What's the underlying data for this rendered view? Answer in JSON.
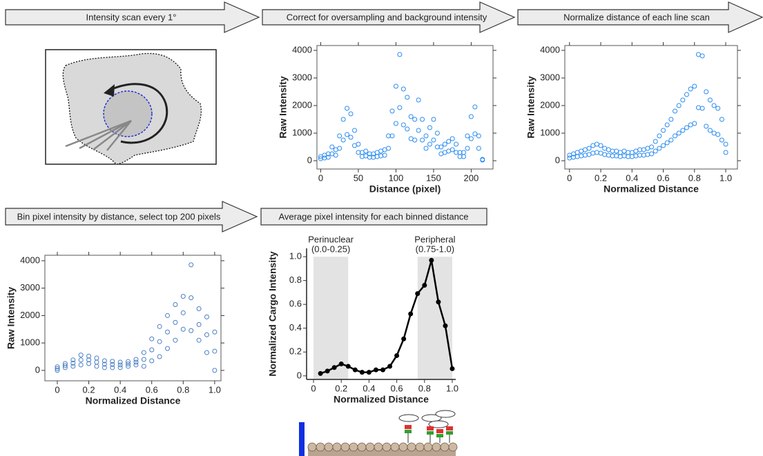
{
  "steps": [
    "Intensity scan every 1°",
    "Correct for oversampling and background intensity",
    "Normalize distance of each line scan",
    "Bin pixel intensity by distance, select top 200 pixels",
    "Average pixel intensity for each binned distance"
  ],
  "chart_data": [
    {
      "type": "scatter",
      "x_label": "Distance (pixel)",
      "y_label": "Raw Intensity",
      "color": "#2b8cf0",
      "frame": true,
      "xlim": [
        -5,
        229
      ],
      "ylim": [
        -300,
        4175
      ],
      "xticks": [
        0,
        50,
        100,
        150,
        200
      ],
      "yticks": [
        0,
        1000,
        2000,
        3000,
        4000
      ],
      "x": [
        0,
        5,
        10,
        15,
        20,
        25,
        30,
        35,
        40,
        45,
        50,
        55,
        60,
        65,
        70,
        75,
        80,
        85,
        90,
        95,
        100,
        105,
        110,
        115,
        120,
        125,
        130,
        135,
        140,
        145,
        150,
        155,
        160,
        165,
        170,
        175,
        180,
        185,
        190,
        195,
        200,
        205,
        210,
        215,
        0,
        5,
        10,
        15,
        20,
        25,
        30,
        35,
        40,
        45,
        50,
        55,
        60,
        65,
        70,
        75,
        80,
        85,
        90,
        95,
        100,
        105,
        110,
        115,
        120,
        125,
        130,
        135,
        140,
        145,
        150,
        155,
        160,
        165,
        170,
        175,
        180,
        185,
        190,
        195,
        200,
        205,
        210,
        215
      ],
      "y": [
        150,
        200,
        250,
        500,
        400,
        900,
        1500,
        1900,
        1700,
        1100,
        600,
        300,
        350,
        250,
        250,
        300,
        350,
        400,
        900,
        1800,
        2700,
        3850,
        2600,
        2300,
        1600,
        1500,
        2200,
        1500,
        900,
        1200,
        1500,
        1000,
        500,
        600,
        700,
        800,
        600,
        300,
        300,
        900,
        1600,
        1950,
        900,
        50,
        75,
        100,
        125,
        250,
        200,
        450,
        750,
        950,
        850,
        550,
        300,
        150,
        175,
        125,
        125,
        150,
        175,
        200,
        450,
        900,
        1350,
        1925,
        1300,
        1150,
        800,
        750,
        1100,
        750,
        450,
        600,
        750,
        500,
        250,
        300,
        350,
        400,
        300,
        150,
        150,
        450,
        800,
        975,
        450,
        25
      ]
    },
    {
      "type": "scatter",
      "x_label": "Normalized Distance",
      "y_label": "Raw Intensity",
      "color": "#2b8cf0",
      "frame": true,
      "xlim": [
        -0.03,
        1.075
      ],
      "ylim": [
        -300,
        4175
      ],
      "xticks": [
        0,
        0.2,
        0.4,
        0.6,
        0.8,
        {
          "value": 1,
          "label": "1.0"
        }
      ],
      "yticks": [
        0,
        1000,
        2000,
        3000,
        4000
      ],
      "x": [
        0,
        0.025,
        0.05,
        0.075,
        0.1,
        0.125,
        0.15,
        0.175,
        0.2,
        0.225,
        0.25,
        0.275,
        0.3,
        0.325,
        0.35,
        0.375,
        0.4,
        0.425,
        0.45,
        0.475,
        0.5,
        0.525,
        0.55,
        0.575,
        0.6,
        0.625,
        0.65,
        0.675,
        0.7,
        0.725,
        0.75,
        0.775,
        0.8,
        0.825,
        0.85,
        0.875,
        0.9,
        0.925,
        0.95,
        0.975,
        1,
        0,
        0.025,
        0.05,
        0.075,
        0.1,
        0.125,
        0.15,
        0.175,
        0.2,
        0.225,
        0.25,
        0.275,
        0.3,
        0.325,
        0.35,
        0.375,
        0.4,
        0.425,
        0.45,
        0.475,
        0.5,
        0.525,
        0.55,
        0.575,
        0.6,
        0.625,
        0.65,
        0.675,
        0.7,
        0.725,
        0.75,
        0.775,
        0.8,
        0.825,
        0.85,
        0.875,
        0.9,
        0.925,
        0.95,
        0.975,
        1
      ],
      "y": [
        200,
        250,
        300,
        350,
        400,
        450,
        550,
        600,
        550,
        450,
        400,
        350,
        350,
        300,
        350,
        300,
        300,
        350,
        400,
        400,
        450,
        500,
        700,
        900,
        1100,
        1300,
        1500,
        1800,
        2000,
        2200,
        2400,
        2600,
        2700,
        3850,
        3800,
        2500,
        2200,
        2000,
        1900,
        1500,
        600,
        100,
        125,
        150,
        175,
        200,
        225,
        275,
        300,
        275,
        225,
        200,
        175,
        175,
        150,
        175,
        150,
        150,
        175,
        200,
        200,
        225,
        250,
        350,
        450,
        550,
        650,
        750,
        900,
        1000,
        1100,
        1200,
        1300,
        1350,
        1925,
        1900,
        1250,
        1100,
        1000,
        950,
        750,
        300
      ]
    },
    {
      "type": "scatter",
      "x_label": "Normalized Distance",
      "y_label": "Raw Intensity",
      "color": "#4a7ec4",
      "frame": true,
      "xlim": [
        -0.079,
        1.04
      ],
      "ylim": [
        -380,
        4200
      ],
      "xticks": [
        0,
        0.2,
        0.4,
        0.6,
        0.8,
        {
          "value": 1,
          "label": "1.0"
        }
      ],
      "yticks": [
        0,
        1000,
        2000,
        3000,
        4000
      ],
      "x": [
        0,
        0.05,
        0.1,
        0.15,
        0.2,
        0.25,
        0.3,
        0.35,
        0.4,
        0.45,
        0.5,
        0.55,
        0.6,
        0.65,
        0.7,
        0.75,
        0.8,
        0.85,
        0.9,
        0.95,
        1,
        0,
        0.05,
        0.1,
        0.15,
        0.2,
        0.25,
        0.3,
        0.35,
        0.4,
        0.45,
        0.5,
        0.55,
        0.6,
        0.65,
        0.7,
        0.75,
        0.8,
        0.85,
        0.9,
        0.95,
        1,
        0,
        0.05,
        0.1,
        0.15,
        0.2,
        0.25,
        0.3,
        0.35,
        0.4,
        0.45,
        0.5,
        0.55,
        0.6,
        0.65,
        0.7,
        0.75,
        0.8,
        0.85,
        0.9,
        0.95,
        1
      ],
      "y": [
        130,
        250,
        380,
        560,
        520,
        450,
        350,
        330,
        300,
        320,
        400,
        650,
        1150,
        1600,
        2000,
        2400,
        2700,
        3850,
        2250,
        1950,
        1400,
        0,
        100,
        150,
        200,
        250,
        150,
        100,
        100,
        100,
        150,
        200,
        150,
        350,
        500,
        800,
        1100,
        1500,
        1450,
        1100,
        650,
        0,
        65,
        175,
        265,
        380,
        385,
        300,
        225,
        215,
        200,
        235,
        300,
        400,
        750,
        1050,
        1400,
        1750,
        2100,
        2650,
        1675,
        1300,
        700
      ]
    },
    {
      "type": "line",
      "x_label": "Normalized Distance",
      "y_label": "Normalized Cargo Intensity",
      "color": "#000000",
      "frame": false,
      "xlim": [
        -0.05,
        1.025
      ],
      "ylim": [
        -0.03,
        1.07
      ],
      "xticks": [
        0,
        0.2,
        0.4,
        0.6,
        0.8,
        {
          "value": 1,
          "label": "1.0"
        }
      ],
      "yticks": [
        0,
        0.2,
        0.4,
        0.6,
        0.8,
        {
          "value": 1,
          "label": "1.0"
        }
      ],
      "regions": [
        {
          "label": "Perinuclear",
          "range_label": "(0.0-0.25)",
          "start": 0,
          "end": 0.25,
          "color": "#e3e3e3"
        },
        {
          "label": "Peripheral",
          "range_label": "(0.75-1.0)",
          "start": 0.75,
          "end": 1,
          "color": "#e3e3e3"
        }
      ],
      "x": [
        0.05,
        0.1,
        0.15,
        0.2,
        0.25,
        0.3,
        0.35,
        0.4,
        0.45,
        0.5,
        0.55,
        0.6,
        0.65,
        0.7,
        0.75,
        0.8,
        0.85,
        0.9,
        0.95,
        1
      ],
      "y": [
        0.02,
        0.04,
        0.07,
        0.1,
        0.08,
        0.05,
        0.03,
        0.03,
        0.05,
        0.05,
        0.08,
        0.17,
        0.31,
        0.52,
        0.69,
        0.76,
        0.97,
        0.62,
        0.42,
        0.06
      ]
    }
  ]
}
